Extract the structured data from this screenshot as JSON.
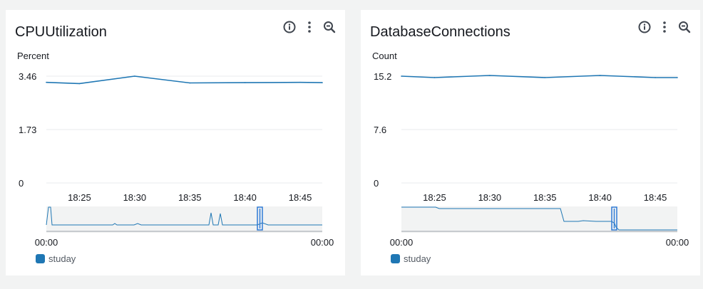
{
  "colors": {
    "series": "#1f77b4",
    "grid": "#e9ebed",
    "overview_bg": "#f2f3f3",
    "handle": "#2e7bd6"
  },
  "icons": [
    "info-icon",
    "more-vertical-icon",
    "zoom-out-icon"
  ],
  "chart_data": [
    {
      "type": "line",
      "title": "CPUUtilization",
      "ylabel": "Percent",
      "ylim": [
        0,
        3.46
      ],
      "yticks": [
        "3.46",
        "1.73",
        "0"
      ],
      "xticks": [
        "18:25",
        "18:30",
        "18:35",
        "18:40",
        "18:45"
      ],
      "x": [
        "18:22",
        "18:25",
        "18:30",
        "18:35",
        "18:40",
        "18:45",
        "18:47"
      ],
      "series": [
        {
          "name": "studay",
          "values": [
            3.26,
            3.22,
            3.46,
            3.24,
            3.25,
            3.26,
            3.25
          ]
        }
      ],
      "overview": {
        "start_label": "00:00",
        "end_label": "00:00"
      },
      "legend": "bottom-left",
      "grid": true
    },
    {
      "type": "line",
      "title": "DatabaseConnections",
      "ylabel": "Count",
      "ylim": [
        0,
        15.2
      ],
      "yticks": [
        "15.2",
        "7.6",
        "0"
      ],
      "xticks": [
        "18:25",
        "18:30",
        "18:35",
        "18:40",
        "18:45"
      ],
      "x": [
        "18:22",
        "18:25",
        "18:30",
        "18:35",
        "18:40",
        "18:45",
        "18:47"
      ],
      "series": [
        {
          "name": "studay",
          "values": [
            15.2,
            15.0,
            15.3,
            15.0,
            15.3,
            15.0,
            15.0
          ]
        }
      ],
      "overview": {
        "start_label": "00:00",
        "end_label": "00:00"
      },
      "legend": "bottom-left",
      "grid": true
    }
  ]
}
